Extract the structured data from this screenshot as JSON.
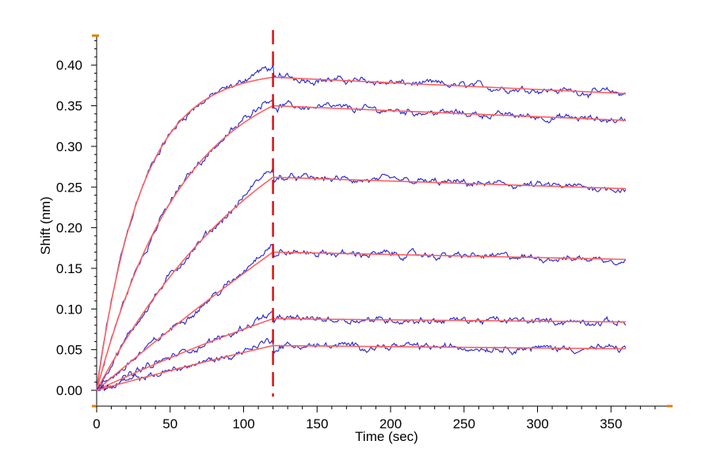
{
  "chart_data": {
    "type": "line",
    "title": "",
    "xlabel": "Time (sec)",
    "ylabel": "Shift (nm)",
    "xlim": [
      0,
      390
    ],
    "ylim": [
      -0.015,
      0.44
    ],
    "x_ticks": [
      0,
      50,
      100,
      150,
      200,
      250,
      300,
      350
    ],
    "x_tick_labels": [
      "0",
      "50",
      "100",
      "150",
      "200",
      "250",
      "300",
      "350"
    ],
    "y_ticks": [
      0.0,
      0.05,
      0.1,
      0.15,
      0.2,
      0.25,
      0.3,
      0.35,
      0.4
    ],
    "y_tick_labels": [
      "0.00",
      "0.05",
      "0.10",
      "0.15",
      "0.20",
      "0.25",
      "0.30",
      "0.35",
      "0.40"
    ],
    "grid": false,
    "dissociation_start": 120,
    "end_time": 360,
    "colors": {
      "data": "#2222cc",
      "fit": "#ff6060",
      "marker": "#dd1111",
      "axis_end": "#e08000"
    },
    "series": [
      {
        "association": [
          [
            0,
            0
          ],
          [
            20,
            0.2
          ],
          [
            50,
            0.316
          ],
          [
            80,
            0.366
          ],
          [
            120,
            0.385
          ]
        ],
        "dissociation": [
          [
            120,
            0.385
          ],
          [
            360,
            0.365
          ]
        ]
      },
      {
        "association": [
          [
            0,
            0
          ],
          [
            20,
            0.12
          ],
          [
            50,
            0.23
          ],
          [
            80,
            0.305
          ],
          [
            120,
            0.35
          ]
        ],
        "dissociation": [
          [
            120,
            0.35
          ],
          [
            360,
            0.332
          ]
        ]
      },
      {
        "association": [
          [
            0,
            0
          ],
          [
            20,
            0.065
          ],
          [
            50,
            0.14
          ],
          [
            80,
            0.2
          ],
          [
            120,
            0.262
          ]
        ],
        "dissociation": [
          [
            120,
            0.262
          ],
          [
            360,
            0.248
          ]
        ]
      },
      {
        "association": [
          [
            0,
            0
          ],
          [
            20,
            0.035
          ],
          [
            50,
            0.075
          ],
          [
            80,
            0.115
          ],
          [
            120,
            0.17
          ]
        ],
        "dissociation": [
          [
            120,
            0.17
          ],
          [
            360,
            0.161
          ]
        ]
      },
      {
        "association": [
          [
            0,
            0
          ],
          [
            20,
            0.018
          ],
          [
            50,
            0.04
          ],
          [
            80,
            0.061
          ],
          [
            120,
            0.088
          ]
        ],
        "dissociation": [
          [
            120,
            0.088
          ],
          [
            360,
            0.084
          ]
        ]
      },
      {
        "association": [
          [
            0,
            0
          ],
          [
            20,
            0.011
          ],
          [
            50,
            0.024
          ],
          [
            80,
            0.037
          ],
          [
            120,
            0.055
          ]
        ],
        "dissociation": [
          [
            120,
            0.055
          ],
          [
            360,
            0.051
          ]
        ]
      }
    ]
  }
}
